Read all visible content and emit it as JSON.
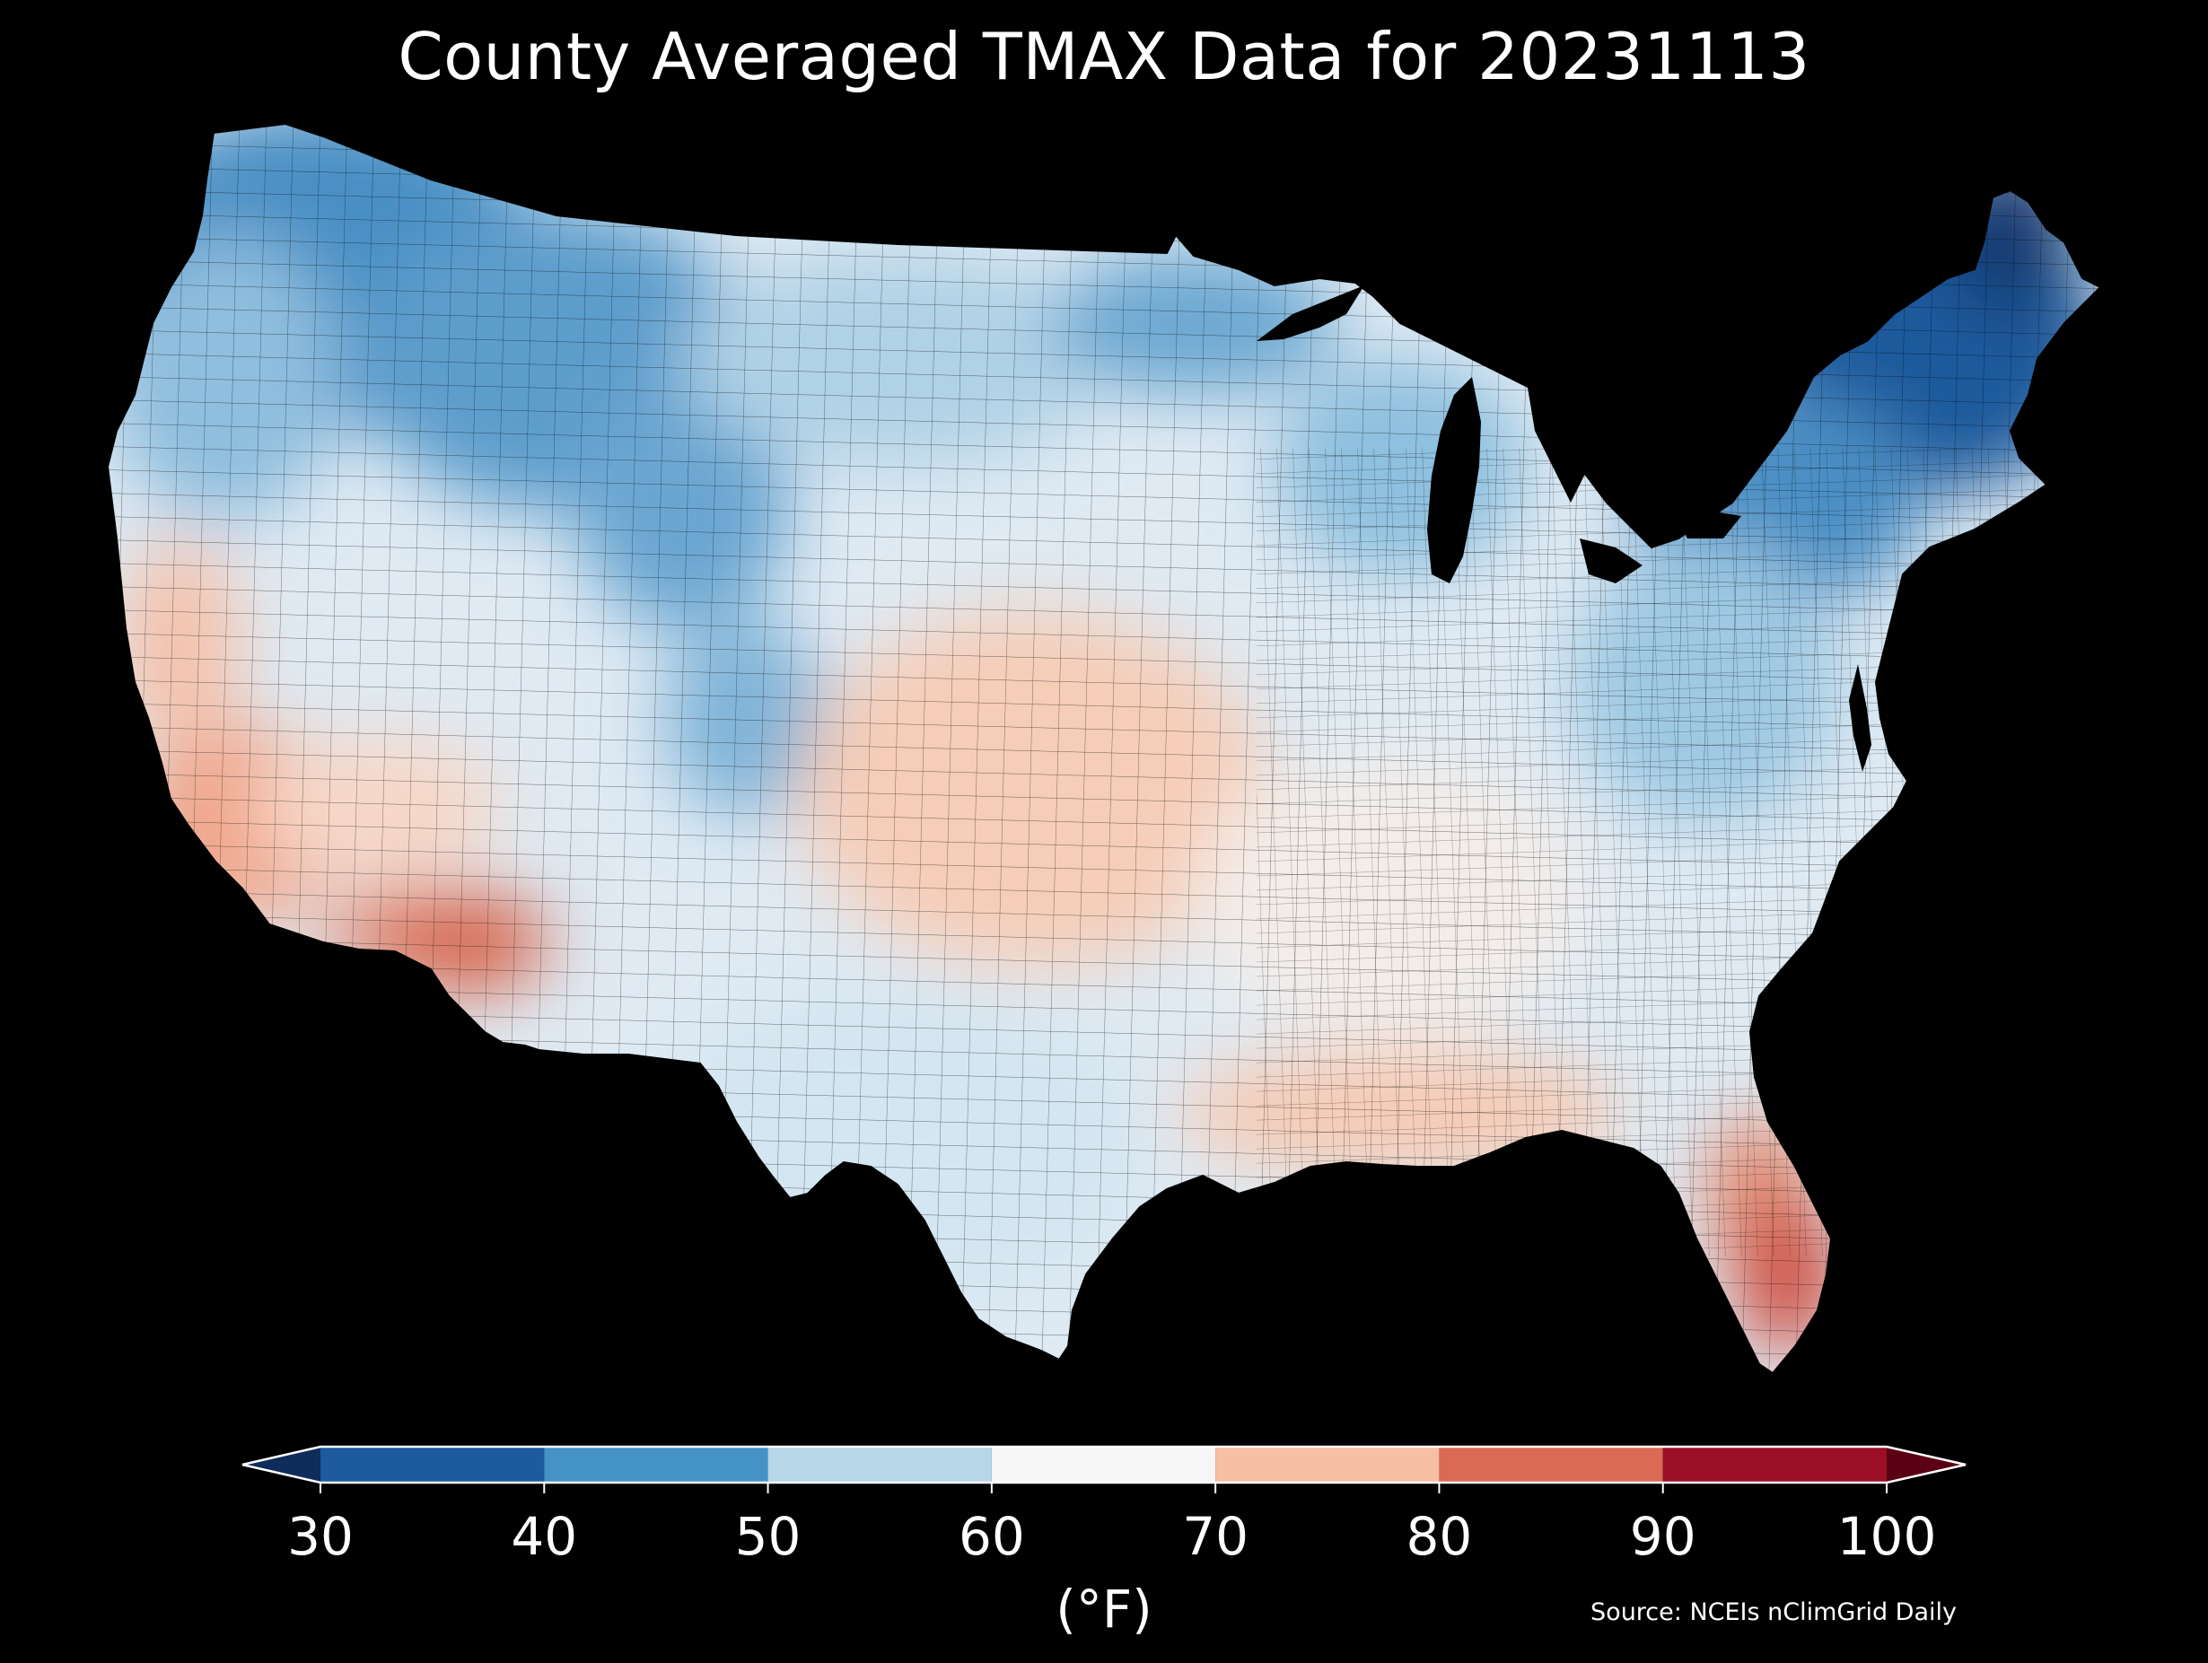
{
  "title": "County Averaged TMAX Data for 20231113",
  "map": {
    "region": "Contiguous United States",
    "unit": "county",
    "variable": "TMAX",
    "background_color": "#000000",
    "boundary_color": "#000000",
    "regional_values": [
      {
        "region": "Pacific Northwest (WA/OR interior)",
        "tmax_range": [
          40,
          50
        ]
      },
      {
        "region": "Northern Rockies (MT/ID/WY)",
        "tmax_range": [
          40,
          50
        ]
      },
      {
        "region": "Northern Plains / Upper Midwest",
        "tmax_range": [
          50,
          60
        ]
      },
      {
        "region": "Central Plains (KS/OK/NE)",
        "tmax_range": [
          60,
          70
        ]
      },
      {
        "region": "Coastal & Southern California",
        "tmax_range": [
          70,
          80
        ]
      },
      {
        "region": "Southern Arizona",
        "tmax_range": [
          80,
          90
        ]
      },
      {
        "region": "Texas",
        "tmax_range": [
          50,
          60
        ]
      },
      {
        "region": "Gulf Coast",
        "tmax_range": [
          60,
          70
        ]
      },
      {
        "region": "Southern Florida",
        "tmax_range": [
          80,
          90
        ]
      },
      {
        "region": "New England / Northern New York",
        "tmax_range": [
          30,
          40
        ]
      }
    ]
  },
  "colorbar": {
    "ticks": [
      "30",
      "40",
      "50",
      "60",
      "70",
      "80",
      "90",
      "100"
    ],
    "bins": [
      {
        "range": [
          30,
          40
        ],
        "color": "#1d5a9e"
      },
      {
        "range": [
          40,
          50
        ],
        "color": "#4593c6"
      },
      {
        "range": [
          50,
          60
        ],
        "color": "#b5d7e8"
      },
      {
        "range": [
          60,
          70
        ],
        "color": "#f6f6f6"
      },
      {
        "range": [
          70,
          80
        ],
        "color": "#f7bfa4"
      },
      {
        "range": [
          80,
          90
        ],
        "color": "#db6a55"
      },
      {
        "range": [
          90,
          100
        ],
        "color": "#9c0f27"
      }
    ],
    "under_color": "#0e2d5a",
    "over_color": "#5a0012",
    "extend": "both",
    "label": "(°F)"
  },
  "source": "Source: NCEIs nClimGrid Daily",
  "colors": {
    "text": "#ffffff",
    "background": "#000000"
  }
}
